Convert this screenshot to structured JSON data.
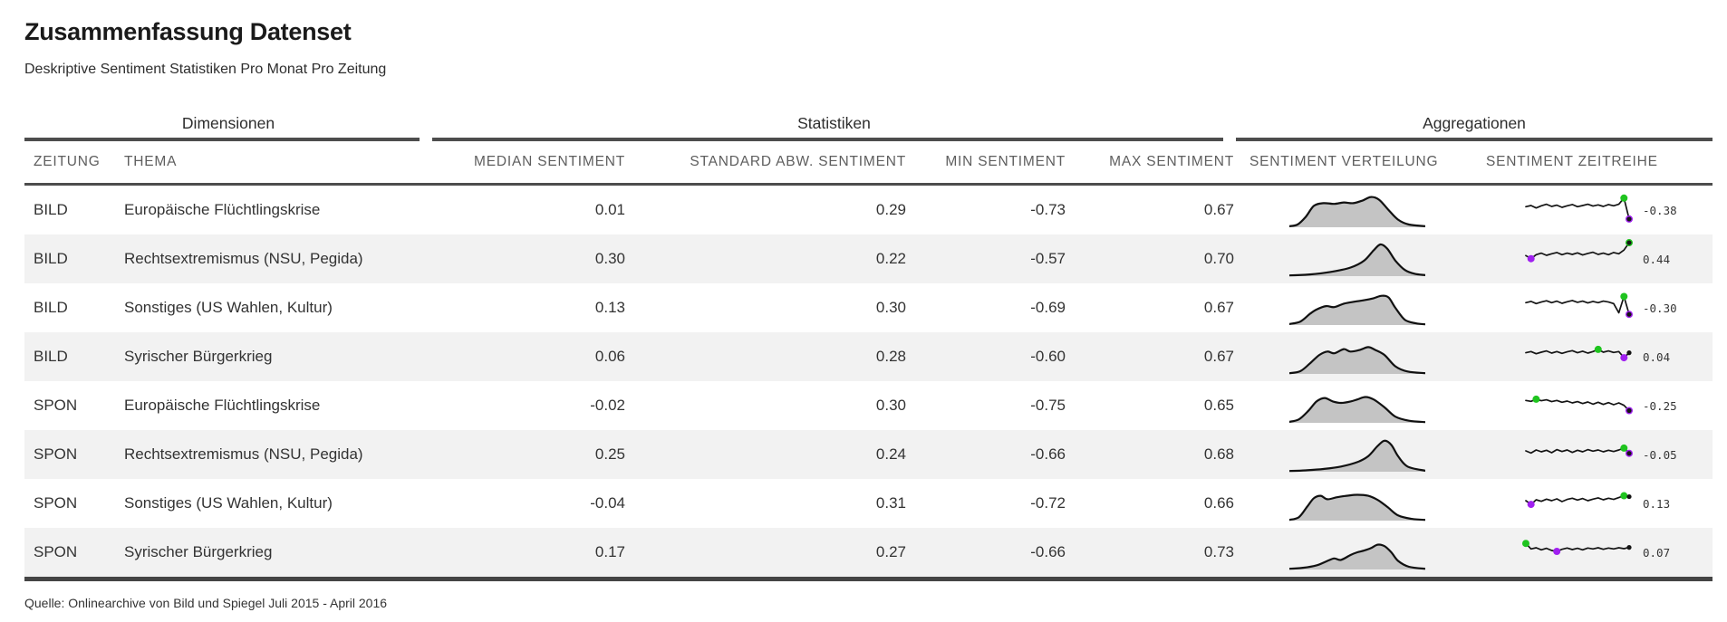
{
  "header": {
    "title": "Zusammenfassung Datenset",
    "subtitle": "Deskriptive Sentiment Statistiken Pro Monat Pro Zeitung"
  },
  "spanners": {
    "dimensionen": "Dimensionen",
    "statistiken": "Statistiken",
    "aggregationen": "Aggregationen"
  },
  "columns": {
    "zeitung": "ZEITUNG",
    "thema": "THEMA",
    "median": "MEDIAN SENTIMENT",
    "std": "STANDARD ABW. SENTIMENT",
    "min": "MIN SENTIMENT",
    "max": "MAX SENTIMENT",
    "verteilung": "SENTIMENT VERTEILUNG",
    "zeitreihe": "SENTIMENT ZEITREIHE"
  },
  "colors": {
    "max_dot_green": "#1fc41f",
    "min_dot_purple": "#a020f0",
    "final_dot_black": "#141414",
    "density_fill": "#c4c4c4",
    "density_stroke": "#111111",
    "stripe": "#f2f2f2",
    "rule": "#4d4d4d"
  },
  "rows": [
    {
      "zeitung": "BILD",
      "thema": "Europäische Flüchtlingskrise",
      "median": "0.01",
      "std": "0.29",
      "min": "-0.73",
      "max": "0.67",
      "spark_label": "-0.38",
      "density": [
        [
          0,
          0.03
        ],
        [
          0.06,
          0.08
        ],
        [
          0.12,
          0.3
        ],
        [
          0.18,
          0.62
        ],
        [
          0.25,
          0.7
        ],
        [
          0.33,
          0.68
        ],
        [
          0.4,
          0.72
        ],
        [
          0.47,
          0.7
        ],
        [
          0.54,
          0.78
        ],
        [
          0.6,
          0.88
        ],
        [
          0.66,
          0.8
        ],
        [
          0.73,
          0.5
        ],
        [
          0.8,
          0.22
        ],
        [
          0.88,
          0.08
        ],
        [
          1,
          0.03
        ]
      ],
      "spark": [
        0.02,
        0.06,
        -0.02,
        0.05,
        0.1,
        0.03,
        0.07,
        0.0,
        0.05,
        0.09,
        0.02,
        0.06,
        0.1,
        0.04,
        0.08,
        0.03,
        0.09,
        0.05,
        0.1,
        0.3,
        -0.38
      ]
    },
    {
      "zeitung": "BILD",
      "thema": "Rechtsextremismus (NSU, Pegida)",
      "median": "0.30",
      "std": "0.22",
      "min": "-0.57",
      "max": "0.70",
      "spark_label": "0.44",
      "density": [
        [
          0,
          0.02
        ],
        [
          0.15,
          0.05
        ],
        [
          0.3,
          0.12
        ],
        [
          0.45,
          0.25
        ],
        [
          0.55,
          0.45
        ],
        [
          0.62,
          0.75
        ],
        [
          0.67,
          0.92
        ],
        [
          0.72,
          0.8
        ],
        [
          0.78,
          0.45
        ],
        [
          0.85,
          0.18
        ],
        [
          0.92,
          0.07
        ],
        [
          1,
          0.03
        ]
      ],
      "spark": [
        0.02,
        -0.08,
        0.05,
        0.1,
        0.03,
        0.08,
        0.12,
        0.05,
        0.1,
        0.06,
        0.11,
        0.04,
        0.09,
        0.13,
        0.06,
        0.1,
        0.05,
        0.12,
        0.08,
        0.2,
        0.44
      ]
    },
    {
      "zeitung": "BILD",
      "thema": "Sonstiges (US Wahlen, Kultur)",
      "median": "0.13",
      "std": "0.30",
      "min": "-0.69",
      "max": "0.67",
      "spark_label": "-0.30",
      "density": [
        [
          0,
          0.03
        ],
        [
          0.08,
          0.1
        ],
        [
          0.15,
          0.32
        ],
        [
          0.2,
          0.45
        ],
        [
          0.27,
          0.55
        ],
        [
          0.33,
          0.52
        ],
        [
          0.4,
          0.62
        ],
        [
          0.48,
          0.68
        ],
        [
          0.55,
          0.72
        ],
        [
          0.62,
          0.78
        ],
        [
          0.68,
          0.85
        ],
        [
          0.73,
          0.8
        ],
        [
          0.78,
          0.5
        ],
        [
          0.85,
          0.15
        ],
        [
          0.93,
          0.05
        ],
        [
          1,
          0.02
        ]
      ],
      "spark": [
        0.08,
        0.12,
        0.05,
        0.1,
        0.14,
        0.08,
        0.13,
        0.06,
        0.11,
        0.15,
        0.09,
        0.13,
        0.07,
        0.12,
        0.08,
        0.13,
        0.1,
        0.05,
        -0.25,
        0.28,
        -0.3
      ]
    },
    {
      "zeitung": "BILD",
      "thema": "Syrischer Bürgerkrieg",
      "median": "0.06",
      "std": "0.28",
      "min": "-0.60",
      "max": "0.67",
      "spark_label": "0.04",
      "density": [
        [
          0,
          0.02
        ],
        [
          0.08,
          0.08
        ],
        [
          0.15,
          0.3
        ],
        [
          0.22,
          0.55
        ],
        [
          0.28,
          0.65
        ],
        [
          0.33,
          0.6
        ],
        [
          0.4,
          0.72
        ],
        [
          0.45,
          0.65
        ],
        [
          0.52,
          0.7
        ],
        [
          0.58,
          0.78
        ],
        [
          0.63,
          0.7
        ],
        [
          0.7,
          0.55
        ],
        [
          0.78,
          0.22
        ],
        [
          0.87,
          0.07
        ],
        [
          1,
          0.02
        ]
      ],
      "spark": [
        0.04,
        0.08,
        0.01,
        0.06,
        0.1,
        0.03,
        0.08,
        0.02,
        0.07,
        0.11,
        0.04,
        0.09,
        0.03,
        0.08,
        0.15,
        0.06,
        0.1,
        0.05,
        0.08,
        -0.12,
        0.04
      ]
    },
    {
      "zeitung": "SPON",
      "thema": "Europäische Flüchtlingskrise",
      "median": "-0.02",
      "std": "0.30",
      "min": "-0.75",
      "max": "0.65",
      "spark_label": "-0.25",
      "density": [
        [
          0,
          0.03
        ],
        [
          0.07,
          0.1
        ],
        [
          0.14,
          0.35
        ],
        [
          0.2,
          0.62
        ],
        [
          0.26,
          0.72
        ],
        [
          0.32,
          0.62
        ],
        [
          0.38,
          0.58
        ],
        [
          0.45,
          0.62
        ],
        [
          0.5,
          0.68
        ],
        [
          0.56,
          0.75
        ],
        [
          0.62,
          0.68
        ],
        [
          0.7,
          0.45
        ],
        [
          0.78,
          0.18
        ],
        [
          0.88,
          0.06
        ],
        [
          1,
          0.02
        ]
      ],
      "spark": [
        0.08,
        0.05,
        0.12,
        0.07,
        0.1,
        0.04,
        0.08,
        0.02,
        0.06,
        0.0,
        0.04,
        -0.02,
        0.03,
        -0.04,
        0.02,
        -0.05,
        0.01,
        -0.06,
        0.0,
        -0.08,
        -0.25
      ]
    },
    {
      "zeitung": "SPON",
      "thema": "Rechtsextremismus (NSU, Pegida)",
      "median": "0.25",
      "std": "0.24",
      "min": "-0.66",
      "max": "0.68",
      "spark_label": "-0.05",
      "density": [
        [
          0,
          0.02
        ],
        [
          0.12,
          0.04
        ],
        [
          0.25,
          0.08
        ],
        [
          0.38,
          0.15
        ],
        [
          0.5,
          0.28
        ],
        [
          0.58,
          0.45
        ],
        [
          0.65,
          0.75
        ],
        [
          0.7,
          0.9
        ],
        [
          0.75,
          0.78
        ],
        [
          0.8,
          0.45
        ],
        [
          0.87,
          0.15
        ],
        [
          1,
          0.03
        ]
      ],
      "spark": [
        0.03,
        -0.04,
        0.06,
        0.0,
        0.05,
        -0.03,
        0.07,
        0.01,
        0.06,
        -0.02,
        0.05,
        0.0,
        0.07,
        0.02,
        0.06,
        0.0,
        0.05,
        0.01,
        0.06,
        0.12,
        -0.05
      ]
    },
    {
      "zeitung": "SPON",
      "thema": "Sonstiges (US Wahlen, Kultur)",
      "median": "-0.04",
      "std": "0.31",
      "min": "-0.72",
      "max": "0.66",
      "spark_label": "0.13",
      "density": [
        [
          0,
          0.02
        ],
        [
          0.07,
          0.1
        ],
        [
          0.13,
          0.4
        ],
        [
          0.18,
          0.65
        ],
        [
          0.23,
          0.72
        ],
        [
          0.28,
          0.62
        ],
        [
          0.35,
          0.68
        ],
        [
          0.42,
          0.72
        ],
        [
          0.5,
          0.75
        ],
        [
          0.58,
          0.72
        ],
        [
          0.65,
          0.6
        ],
        [
          0.72,
          0.4
        ],
        [
          0.8,
          0.15
        ],
        [
          0.9,
          0.05
        ],
        [
          1,
          0.02
        ]
      ],
      "spark": [
        0.0,
        -0.12,
        0.03,
        -0.02,
        0.05,
        0.0,
        0.06,
        -0.03,
        0.04,
        0.08,
        0.02,
        0.07,
        0.0,
        0.05,
        0.09,
        0.03,
        0.08,
        0.04,
        0.1,
        0.16,
        0.13
      ]
    },
    {
      "zeitung": "SPON",
      "thema": "Syrischer Bürgerkrieg",
      "median": "0.17",
      "std": "0.27",
      "min": "-0.66",
      "max": "0.73",
      "spark_label": "0.07",
      "density": [
        [
          0,
          0.02
        ],
        [
          0.1,
          0.05
        ],
        [
          0.2,
          0.12
        ],
        [
          0.28,
          0.25
        ],
        [
          0.33,
          0.32
        ],
        [
          0.38,
          0.28
        ],
        [
          0.45,
          0.42
        ],
        [
          0.5,
          0.5
        ],
        [
          0.55,
          0.55
        ],
        [
          0.6,
          0.62
        ],
        [
          0.65,
          0.72
        ],
        [
          0.7,
          0.68
        ],
        [
          0.75,
          0.5
        ],
        [
          0.8,
          0.25
        ],
        [
          0.88,
          0.08
        ],
        [
          1,
          0.02
        ]
      ],
      "spark": [
        0.2,
        0.02,
        0.06,
        -0.01,
        0.04,
        -0.03,
        -0.06,
        0.01,
        0.05,
        0.0,
        0.04,
        -0.01,
        0.05,
        0.02,
        0.06,
        0.01,
        0.05,
        0.02,
        0.06,
        0.03,
        0.07
      ]
    }
  ],
  "footer": {
    "source": "Quelle: Onlinearchive von Bild und Spiegel Juli 2015 - April 2016"
  },
  "chart_data": {
    "type": "table",
    "title": "Zusammenfassung Datenset",
    "subtitle": "Deskriptive Sentiment Statistiken Pro Monat Pro Zeitung",
    "column_groups": [
      {
        "label": "Dimensionen",
        "columns": [
          "ZEITUNG",
          "THEMA"
        ]
      },
      {
        "label": "Statistiken",
        "columns": [
          "MEDIAN SENTIMENT",
          "STANDARD ABW. SENTIMENT",
          "MIN SENTIMENT",
          "MAX SENTIMENT"
        ]
      },
      {
        "label": "Aggregationen",
        "columns": [
          "SENTIMENT VERTEILUNG",
          "SENTIMENT ZEITREIHE"
        ]
      }
    ],
    "columns": [
      "ZEITUNG",
      "THEMA",
      "MEDIAN SENTIMENT",
      "STANDARD ABW. SENTIMENT",
      "MIN SENTIMENT",
      "MAX SENTIMENT",
      "SENTIMENT ZEITREIHE (letzter Wert)"
    ],
    "rows": [
      [
        "BILD",
        "Europäische Flüchtlingskrise",
        0.01,
        0.29,
        -0.73,
        0.67,
        -0.38
      ],
      [
        "BILD",
        "Rechtsextremismus (NSU, Pegida)",
        0.3,
        0.22,
        -0.57,
        0.7,
        0.44
      ],
      [
        "BILD",
        "Sonstiges (US Wahlen, Kultur)",
        0.13,
        0.3,
        -0.69,
        0.67,
        -0.3
      ],
      [
        "BILD",
        "Syrischer Bürgerkrieg",
        0.06,
        0.28,
        -0.6,
        0.67,
        0.04
      ],
      [
        "SPON",
        "Europäische Flüchtlingskrise",
        -0.02,
        0.3,
        -0.75,
        0.65,
        -0.25
      ],
      [
        "SPON",
        "Rechtsextremismus (NSU, Pegida)",
        0.25,
        0.24,
        -0.66,
        0.68,
        -0.05
      ],
      [
        "SPON",
        "Sonstiges (US Wahlen, Kultur)",
        -0.04,
        0.31,
        -0.72,
        0.66,
        0.13
      ],
      [
        "SPON",
        "Syrischer Bürgerkrieg",
        0.17,
        0.27,
        -0.66,
        0.73,
        0.07
      ]
    ],
    "embedded_plots": {
      "sentiment_verteilung": "density curve per row (gray fill, black outline)",
      "sentiment_zeitreihe": "sparkline per row (black line, green dot = max, purple dot = min, black dot + label = last value)"
    },
    "source": "Quelle: Onlinearchive von Bild und Spiegel Juli 2015 - April 2016"
  }
}
